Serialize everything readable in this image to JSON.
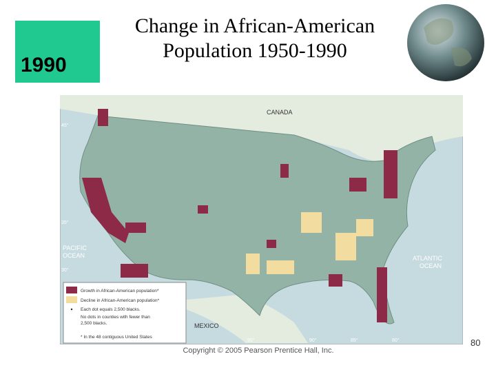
{
  "badge": "1990",
  "title_lines": [
    "Change in African-American",
    "Population 1950-1990"
  ],
  "map": {
    "labels": {
      "canada": "CANADA",
      "pacific": [
        "PACIFIC",
        "OCEAN"
      ],
      "atlantic": [
        "ATLANTIC",
        "OCEAN"
      ],
      "mexico": "MEXICO"
    },
    "latitudes": [
      "45°",
      "35°",
      "30°"
    ],
    "longitudes": [
      "95°",
      "90°",
      "85°",
      "80°"
    ],
    "legend": {
      "growth": "Growth in African-American population*",
      "decline": "Decline in African-American population*",
      "dot": "Each dot equals 2,500 blacks.",
      "no_dots": [
        "No dots in counties with fewer than",
        "2,500 blacks."
      ],
      "footnote": "* In the 48 contiguous United States"
    }
  },
  "copyright": "Copyright © 2005 Pearson Prentice Hall, Inc.",
  "page_number": "80"
}
